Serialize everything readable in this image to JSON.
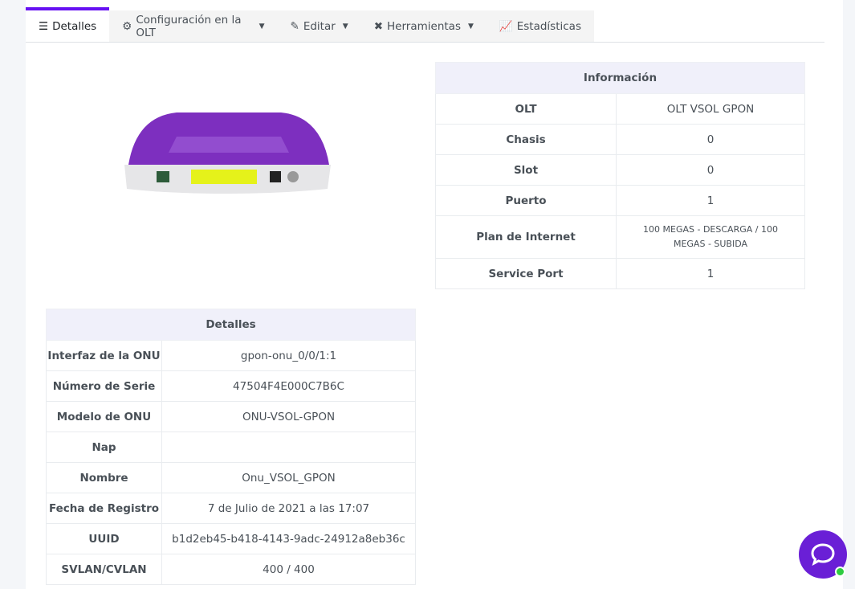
{
  "tabs": [
    {
      "label": "Detalles",
      "icon": "list-icon",
      "active": true
    },
    {
      "label": "Configuración en la OLT",
      "icon": "gear-icon",
      "dropdown": true
    },
    {
      "label": "Editar",
      "icon": "edit-icon",
      "dropdown": true
    },
    {
      "label": "Herramientas",
      "icon": "tools-icon",
      "dropdown": true
    },
    {
      "label": "Estadísticas",
      "icon": "chart-line-icon"
    }
  ],
  "info": {
    "title": "Información",
    "rows": [
      {
        "k": "OLT",
        "v": "OLT VSOL GPON"
      },
      {
        "k": "Chasis",
        "v": "0"
      },
      {
        "k": "Slot",
        "v": "0"
      },
      {
        "k": "Puerto",
        "v": "1"
      },
      {
        "k": "Plan de Internet",
        "v": "100 MEGAS - DESCARGA / 100 MEGAS - SUBIDA"
      },
      {
        "k": "Service Port",
        "v": "1"
      }
    ]
  },
  "details": {
    "title": "Detalles",
    "rows": [
      {
        "k": "Interfaz de la ONU",
        "v": "gpon-onu_0/0/1:1"
      },
      {
        "k": "Número de Serie",
        "v": "47504F4E000C7B6C"
      },
      {
        "k": "Modelo de ONU",
        "v": "ONU-VSOL-GPON"
      },
      {
        "k": "Nap",
        "v": ""
      },
      {
        "k": "Nombre",
        "v": "Onu_VSOL_GPON"
      },
      {
        "k": "Fecha de Registro",
        "v": "7 de Julio de 2021 a las 17:07"
      },
      {
        "k": "UUID",
        "v": "b1d2eb45-b418-4143-9adc-24912a8eb36c"
      },
      {
        "k": "SVLAN/CVLAN",
        "v": "400 / 400"
      }
    ]
  },
  "colors": {
    "accent": "#6610f2",
    "chat": "#6a1fd6",
    "online": "#2ecc40"
  }
}
